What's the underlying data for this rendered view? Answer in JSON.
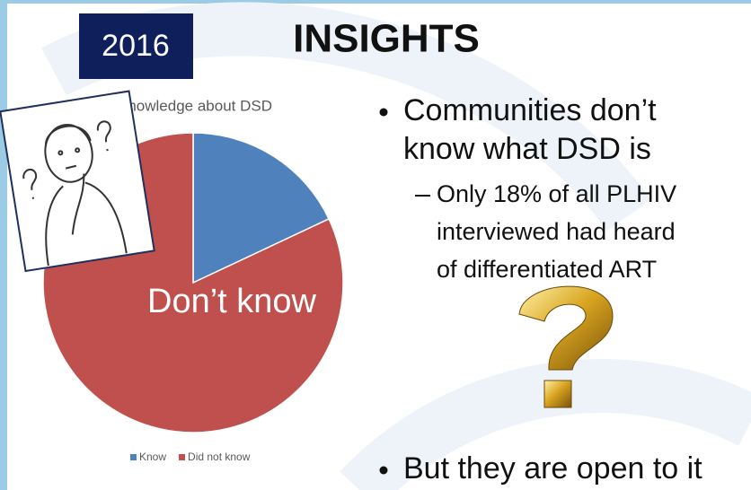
{
  "chart_data": {
    "type": "pie",
    "title": "Knowledge about DSD",
    "categories": [
      "Know",
      "Did not know"
    ],
    "values": [
      18,
      82
    ],
    "colors": [
      "#4f81bd",
      "#c0504d"
    ],
    "annotation": "Don’t know",
    "legend": "bottom"
  },
  "slide": {
    "badge": "2016",
    "title": "INSIGHTS",
    "bullets": [
      {
        "lines": [
          "Communities don’t",
          "know what DSD is"
        ],
        "sub": [
          "Only 18% of all PLHIV",
          "interviewed had heard",
          "of differentiated ART"
        ]
      },
      {
        "lines": [
          "But they are open to it"
        ]
      }
    ]
  }
}
